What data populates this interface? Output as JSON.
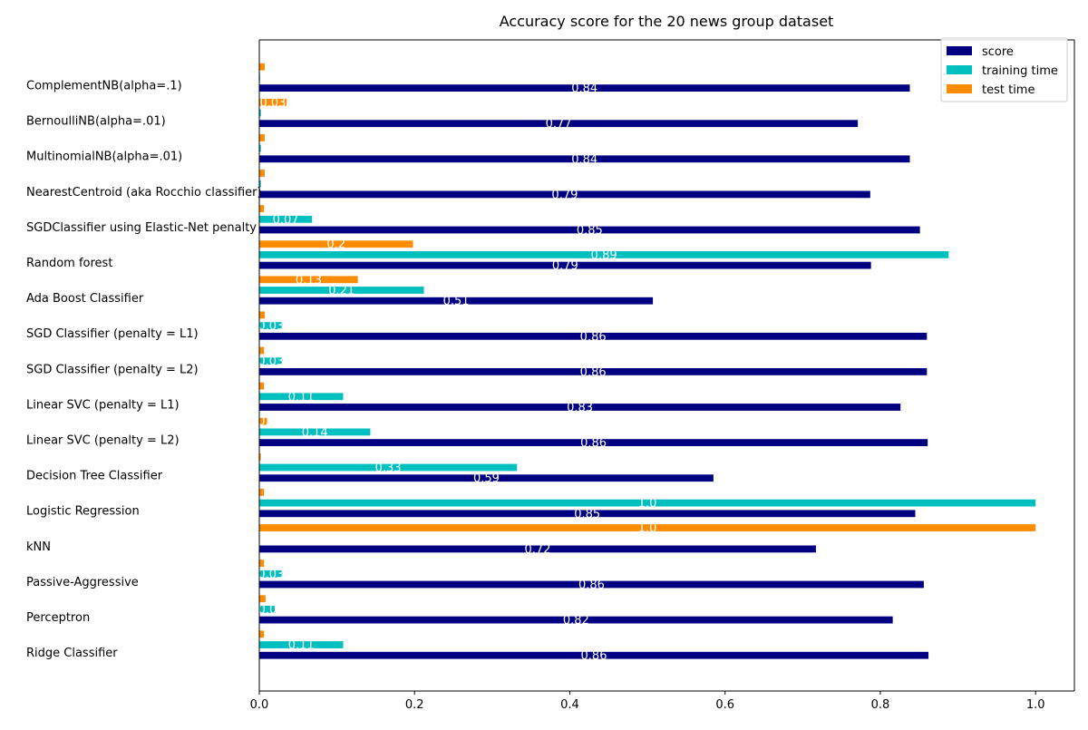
{
  "chart_data": {
    "type": "bar",
    "orientation": "horizontal",
    "title": "Accuracy score for the 20 news group dataset",
    "xlabel": "",
    "ylabel": "",
    "xlim": [
      0,
      1.05
    ],
    "xticks": [
      "0.0",
      "0.2",
      "0.4",
      "0.6",
      "0.8",
      "1.0"
    ],
    "legend_position": "top-right",
    "categories": [
      "ComplementNB(alpha=.1)",
      "BernoulliNB(alpha=.01)",
      "MultinomialNB(alpha=.01)",
      "NearestCentroid (aka Rocchio classifier)",
      "SGDClassifier using Elastic-Net penalty",
      "Random forest",
      "Ada Boost Classifier",
      "SGD Classifier (penalty = L1)",
      "SGD Classifier (penalty = L2)",
      "Linear SVC (penalty = L1)",
      "Linear SVC (penalty = L2)",
      "Decision Tree Classifier",
      "Logistic Regression",
      "kNN",
      "Passive-Aggressive",
      "Perceptron",
      "Ridge Classifier"
    ],
    "series": [
      {
        "name": "score",
        "color": "#000080",
        "values": [
          0.838,
          0.771,
          0.838,
          0.787,
          0.851,
          0.788,
          0.507,
          0.86,
          0.86,
          0.826,
          0.861,
          0.585,
          0.845,
          0.717,
          0.856,
          0.816,
          0.862
        ],
        "labels": [
          "0.84",
          "0.77",
          "0.84",
          "0.79",
          "0.85",
          "0.79",
          "0.51",
          "0.86",
          "0.86",
          "0.83",
          "0.86",
          "0.59",
          "0.85",
          "0.72",
          "0.86",
          "0.82",
          "0.86"
        ]
      },
      {
        "name": "training time",
        "color": "#00bfbf",
        "values": [
          0.001,
          0.002,
          0.002,
          0.002,
          0.068,
          0.888,
          0.212,
          0.03,
          0.03,
          0.108,
          0.143,
          0.332,
          1.0,
          0.0,
          0.03,
          0.021,
          0.108
        ],
        "labels": [
          "",
          "",
          "",
          "",
          "0.07",
          "0.89",
          "0.21",
          "0.03",
          "0.03",
          "0.11",
          "0.14",
          "0.33",
          "1.0",
          "",
          "0.03",
          "0.0",
          "0.11"
        ]
      },
      {
        "name": "test time",
        "color": "#ff8c00",
        "values": [
          0.007,
          0.035,
          0.007,
          0.007,
          0.006,
          0.198,
          0.127,
          0.007,
          0.006,
          0.006,
          0.01,
          0.002,
          0.006,
          1.0,
          0.006,
          0.008,
          0.006
        ],
        "labels": [
          "",
          "0.03",
          "",
          "",
          "",
          "0.2",
          "0.13",
          "",
          "",
          "",
          "0.",
          "",
          "",
          "1.0",
          "",
          "",
          ""
        ]
      }
    ]
  }
}
